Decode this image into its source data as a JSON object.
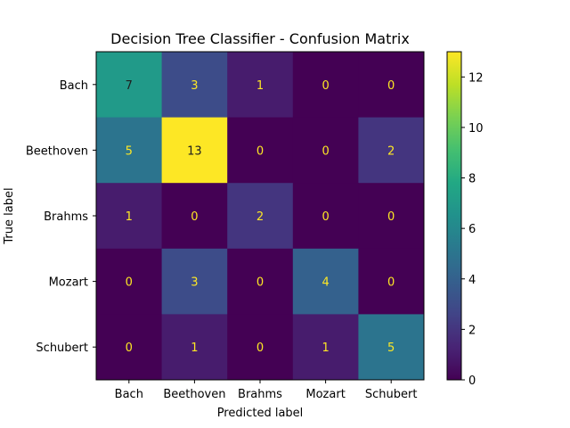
{
  "chart_data": {
    "type": "heatmap",
    "title": "Decision Tree Classifier - Confusion Matrix",
    "xlabel": "Predicted label",
    "ylabel": "True label",
    "row_labels": [
      "Bach",
      "Beethoven",
      "Brahms",
      "Mozart",
      "Schubert"
    ],
    "col_labels": [
      "Bach",
      "Beethoven",
      "Brahms",
      "Mozart",
      "Schubert"
    ],
    "values": [
      [
        7,
        3,
        1,
        0,
        0
      ],
      [
        5,
        13,
        0,
        0,
        2
      ],
      [
        1,
        0,
        2,
        0,
        0
      ],
      [
        0,
        3,
        0,
        4,
        0
      ],
      [
        0,
        1,
        0,
        1,
        5
      ]
    ],
    "colormap": "viridis",
    "color_range": [
      0,
      13
    ],
    "colorbar_ticks": [
      0,
      2,
      4,
      6,
      8,
      10,
      12
    ],
    "text_color_dark_cells": "#fde725",
    "text_color_light_cells": "#1f1f1f"
  }
}
